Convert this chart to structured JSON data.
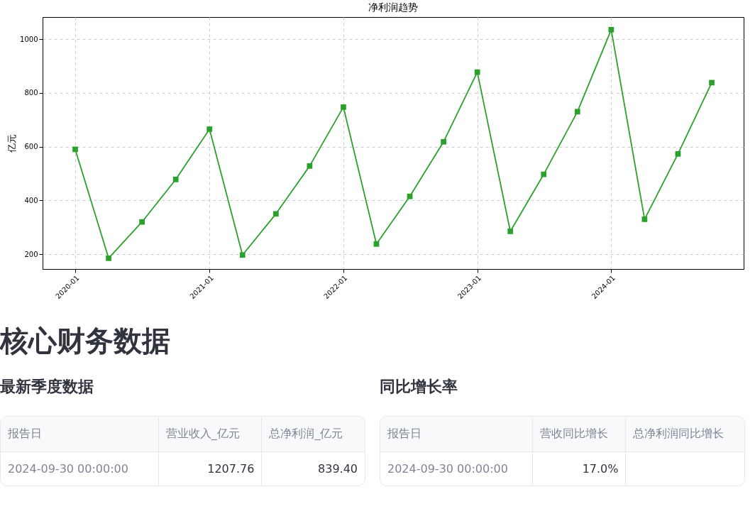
{
  "chart_data": [
    {
      "type": "line",
      "title": "净利润趋势",
      "ylabel": "亿元",
      "x": [
        "2020-01",
        "2020-04",
        "2020-07",
        "2020-10",
        "2021-01",
        "2021-04",
        "2021-07",
        "2021-10",
        "2022-01",
        "2022-04",
        "2022-07",
        "2022-10",
        "2023-01",
        "2023-04",
        "2023-07",
        "2023-10",
        "2024-01",
        "2024-04",
        "2024-07",
        "2024-10"
      ],
      "series": [
        {
          "color": "#2ca02c",
          "values": [
            590,
            185,
            320,
            478,
            665,
            197,
            350,
            528,
            747,
            238,
            415,
            618,
            877,
            285,
            497,
            730,
            1035,
            330,
            573,
            838
          ]
        }
      ],
      "xlim": [
        "2019-10-04",
        "2024-12-27"
      ],
      "xticks": [
        "2020-01",
        "2021-01",
        "2022-01",
        "2023-01",
        "2024-01"
      ],
      "ylim": [
        145,
        1082
      ],
      "yticks": [
        200,
        400,
        600,
        800,
        1000
      ],
      "grid": true,
      "marker": "square",
      "line_style": "solid"
    },
    {
      "type": "other",
      "title": "核心财务数据",
      "annotations": [
        "最新季度数据",
        "报告日",
        "营业收入_亿元",
        "总净利润_亿元",
        "2024-09-30 00:00:00",
        "1207.76",
        "839.40",
        "同比增长率",
        "报告日",
        "营收同比增长",
        "总净利润同比增长",
        "2024-09-30 00:00:00",
        "17.0%"
      ]
    }
  ]
}
